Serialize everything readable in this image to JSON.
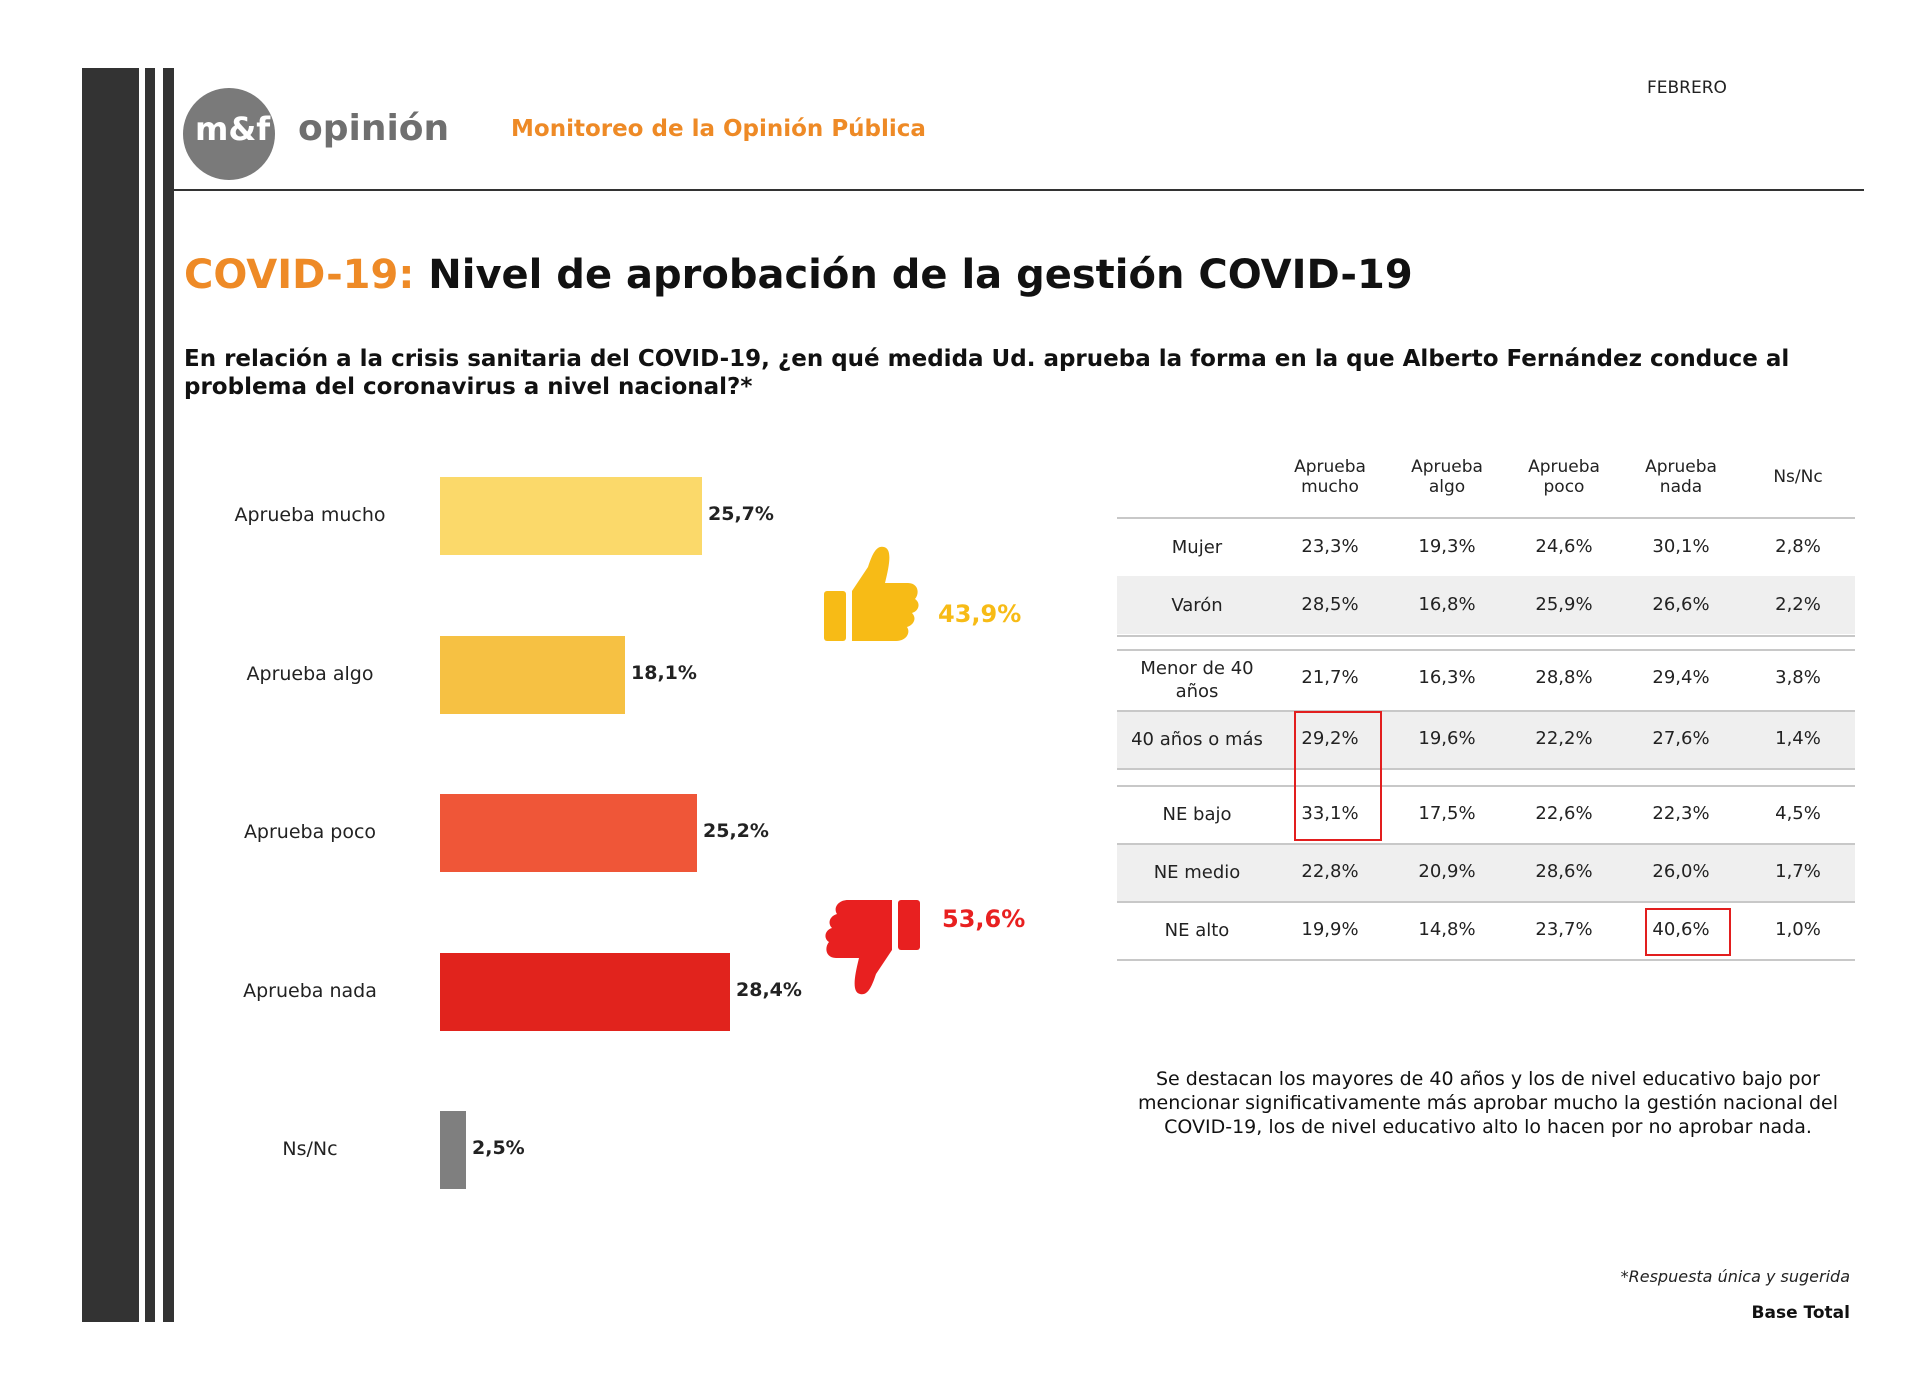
{
  "header": {
    "logo_mark": "m&f",
    "logo_word": "opinión",
    "subtitle": "Monitoreo de la Opinión Pública",
    "month": "FEBRERO"
  },
  "title": {
    "prefix": "COVID-19:",
    "main": "Nivel de aprobación de la gestión COVID-19"
  },
  "question": "En relación a la crisis sanitaria del COVID-19, ¿en qué medida Ud. aprueba la forma en la que Alberto Fernández conduce al problema del coronavirus a nivel nacional?*",
  "colors": {
    "accent": "#EE8A26",
    "approve_mucho": "#FBD96A",
    "approve_algo": "#F6C143",
    "approve_poco": "#EF5638",
    "approve_nada": "#E1231D",
    "nsnc": "#7F7F7F",
    "thumbs_up": "#F7BB16",
    "thumbs_down": "#E82020"
  },
  "chart_data": {
    "type": "bar",
    "orientation": "horizontal",
    "categories": [
      "Aprueba mucho",
      "Aprueba algo",
      "Aprueba poco",
      "Aprueba nada",
      "Ns/Nc"
    ],
    "values": [
      25.7,
      18.1,
      25.2,
      28.4,
      2.5
    ],
    "value_labels": [
      "25,7%",
      "18,1%",
      "25,2%",
      "28,4%",
      "2,5%"
    ],
    "groups": [
      {
        "icon": "thumbs-up-icon",
        "label": "43,9%",
        "value": 43.9,
        "categories": [
          "Aprueba mucho",
          "Aprueba algo"
        ]
      },
      {
        "icon": "thumbs-down-icon",
        "label": "53,6%",
        "value": 53.6,
        "categories": [
          "Aprueba poco",
          "Aprueba nada"
        ]
      }
    ]
  },
  "table": {
    "columns": [
      {
        "line1": "Aprueba",
        "line2": "mucho"
      },
      {
        "line1": "Aprueba",
        "line2": "algo"
      },
      {
        "line1": "Aprueba",
        "line2": "poco"
      },
      {
        "line1": "Aprueba",
        "line2": "nada"
      },
      {
        "line1": "Ns/Nc",
        "line2": ""
      }
    ],
    "rows": [
      {
        "label1": "Mujer",
        "label2": "",
        "values": [
          "23,3%",
          "19,3%",
          "24,6%",
          "30,1%",
          "2,8%"
        ]
      },
      {
        "label1": "Varón",
        "label2": "",
        "values": [
          "28,5%",
          "16,8%",
          "25,9%",
          "26,6%",
          "2,2%"
        ]
      },
      {
        "label1": "Menor de 40",
        "label2": "años",
        "values": [
          "21,7%",
          "16,3%",
          "28,8%",
          "29,4%",
          "3,8%"
        ]
      },
      {
        "label1": "40 años o más",
        "label2": "",
        "values": [
          "29,2%",
          "19,6%",
          "22,2%",
          "27,6%",
          "1,4%"
        ]
      },
      {
        "label1": "NE bajo",
        "label2": "",
        "values": [
          "33,1%",
          "17,5%",
          "22,6%",
          "22,3%",
          "4,5%"
        ]
      },
      {
        "label1": "NE medio",
        "label2": "",
        "values": [
          "22,8%",
          "20,9%",
          "28,6%",
          "26,0%",
          "1,7%"
        ]
      },
      {
        "label1": "NE alto",
        "label2": "",
        "values": [
          "19,9%",
          "14,8%",
          "23,7%",
          "40,6%",
          "1,0%"
        ]
      }
    ]
  },
  "note": "Se destacan los mayores de 40 años y los de nivel educativo bajo por mencionar significativamente más aprobar mucho la gestión nacional del COVID-19, los de nivel educativo alto lo hacen por no aprobar nada.",
  "footnote": "*Respuesta única y sugerida",
  "base": "Base Total"
}
